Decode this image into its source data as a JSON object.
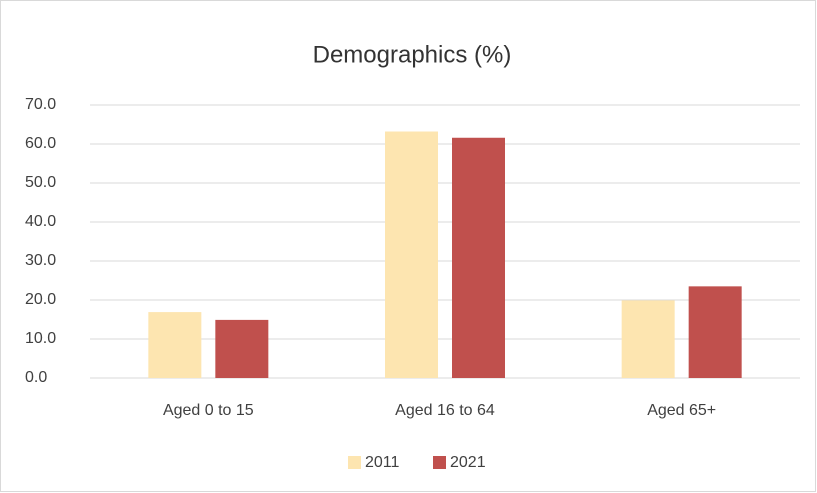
{
  "chart_data": {
    "type": "bar",
    "title": "Demographics (%)",
    "categories": [
      "Aged 0 to 15",
      "Aged 16 to 64",
      "Aged 65+"
    ],
    "series": [
      {
        "name": "2011",
        "color": "#fde5b0",
        "values": [
          16.9,
          63.2,
          19.9
        ]
      },
      {
        "name": "2021",
        "color": "#c0504d",
        "values": [
          14.9,
          61.6,
          23.5
        ]
      }
    ],
    "ylim": [
      0,
      70
    ],
    "yticks": [
      {
        "value": 0,
        "label": "0.0"
      },
      {
        "value": 10,
        "label": "10.0"
      },
      {
        "value": 20,
        "label": "20.0"
      },
      {
        "value": 30,
        "label": "30.0"
      },
      {
        "value": 40,
        "label": "40.0"
      },
      {
        "value": 50,
        "label": "50.0"
      },
      {
        "value": 60,
        "label": "60.0"
      },
      {
        "value": 70,
        "label": "70.0"
      }
    ],
    "grid": true,
    "legend": "bottom"
  }
}
